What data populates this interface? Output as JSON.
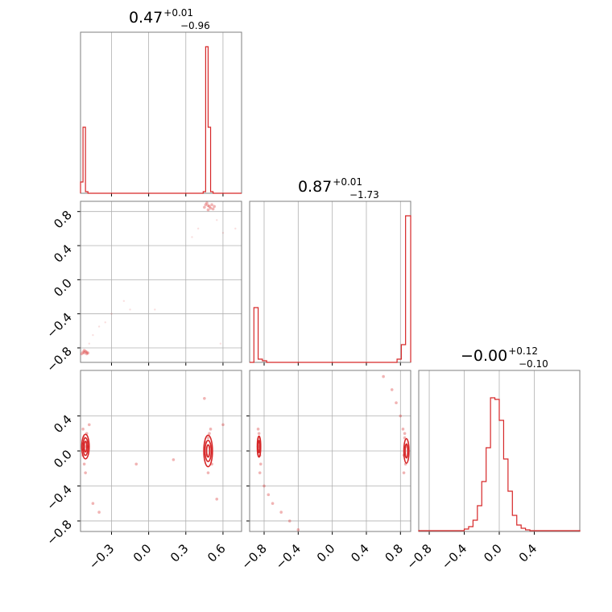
{
  "chart_data": {
    "type": "corner",
    "color": "#d62728",
    "grid": true,
    "parameters": [
      {
        "range": [
          -0.55,
          0.75
        ],
        "title": {
          "median": "0.47",
          "plus": "+0.01",
          "minus": "−0.96"
        }
      },
      {
        "range": [
          -0.97,
          0.92
        ],
        "title": {
          "median": "0.87",
          "plus": "+0.01",
          "minus": "−1.73"
        }
      },
      {
        "range": [
          -0.92,
          0.92
        ],
        "title": {
          "median": "−0.00",
          "plus": "+0.12",
          "minus": "−0.10"
        }
      }
    ],
    "ticks": {
      "p0_x": [
        {
          "v": -0.3,
          "label": "−0.3"
        },
        {
          "v": 0.0,
          "label": "0.0"
        },
        {
          "v": 0.3,
          "label": "0.3"
        },
        {
          "v": 0.6,
          "label": "0.6"
        }
      ],
      "p1_x": [
        {
          "v": -0.8,
          "label": "−0.8"
        },
        {
          "v": -0.4,
          "label": "−0.4"
        },
        {
          "v": 0.0,
          "label": "0.0"
        },
        {
          "v": 0.4,
          "label": "0.4"
        },
        {
          "v": 0.8,
          "label": "0.8"
        }
      ],
      "p2_x": [
        {
          "v": -0.8,
          "label": "−0.8"
        },
        {
          "v": -0.4,
          "label": "−0.4"
        },
        {
          "v": 0.0,
          "label": "0.0"
        },
        {
          "v": 0.4,
          "label": "0.4"
        }
      ],
      "p1_y": [
        {
          "v": -0.8,
          "label": "−0.8"
        },
        {
          "v": -0.4,
          "label": "−0.4"
        },
        {
          "v": 0.0,
          "label": "0.0"
        },
        {
          "v": 0.4,
          "label": "0.4"
        },
        {
          "v": 0.8,
          "label": "0.8"
        }
      ],
      "p2_y": [
        {
          "v": -0.8,
          "label": "−0.8"
        },
        {
          "v": -0.4,
          "label": "−0.4"
        },
        {
          "v": 0.0,
          "label": "0.0"
        },
        {
          "v": 0.4,
          "label": "0.4"
        }
      ]
    },
    "histograms": [
      {
        "param": 0,
        "edges": [
          -0.55,
          -0.53,
          -0.51,
          -0.49,
          -0.47,
          0.44,
          0.46,
          0.48,
          0.5,
          0.52,
          0.54,
          0.56,
          0.75
        ],
        "counts": [
          0.07,
          0.41,
          0.01,
          0.0,
          0.0,
          0.01,
          0.91,
          0.41,
          0.01,
          0.0,
          0.0,
          0.0
        ]
      },
      {
        "param": 1,
        "edges": [
          -0.97,
          -0.92,
          -0.87,
          -0.82,
          -0.77,
          -0.72,
          0.76,
          0.81,
          0.86,
          0.92
        ],
        "counts": [
          0.0,
          0.34,
          0.02,
          0.01,
          0.0,
          0.0,
          0.02,
          0.11,
          0.91
        ]
      },
      {
        "param": 2,
        "edges": [
          -0.92,
          -0.7,
          -0.55,
          -0.4,
          -0.35,
          -0.3,
          -0.25,
          -0.2,
          -0.15,
          -0.1,
          -0.05,
          0.0,
          0.05,
          0.1,
          0.15,
          0.2,
          0.25,
          0.3,
          0.35,
          0.5,
          0.92
        ],
        "counts": [
          0.005,
          0.005,
          0.005,
          0.015,
          0.03,
          0.07,
          0.16,
          0.31,
          0.52,
          0.83,
          0.82,
          0.69,
          0.45,
          0.25,
          0.1,
          0.04,
          0.02,
          0.01,
          0.005,
          0.005
        ]
      }
    ],
    "clusters": [
      {
        "x": 0,
        "y": 1,
        "points": [
          [
            0.48,
            0.87
          ],
          [
            0.5,
            0.84
          ],
          [
            0.46,
            0.88
          ],
          [
            0.52,
            0.83
          ],
          [
            0.47,
            0.9
          ],
          [
            0.49,
            0.86
          ],
          [
            0.51,
            0.88
          ],
          [
            0.45,
            0.85
          ],
          [
            0.53,
            0.86
          ],
          [
            0.48,
            0.82
          ],
          [
            -0.52,
            -0.86
          ],
          [
            -0.5,
            -0.87
          ],
          [
            -0.53,
            -0.85
          ],
          [
            -0.51,
            -0.84
          ],
          [
            -0.49,
            -0.86
          ],
          [
            -0.54,
            -0.87
          ],
          [
            -0.52,
            -0.83
          ],
          [
            -0.5,
            -0.85
          ]
        ]
      },
      {
        "x": 0,
        "y": 1,
        "points": [
          [
            0.4,
            0.6
          ],
          [
            0.35,
            0.5
          ],
          [
            0.55,
            0.7
          ],
          [
            0.6,
            0.55
          ],
          [
            -0.2,
            -0.25
          ],
          [
            -0.15,
            -0.35
          ],
          [
            -0.3,
            -0.4
          ],
          [
            -0.4,
            -0.55
          ],
          [
            -0.45,
            -0.65
          ],
          [
            -0.48,
            -0.75
          ],
          [
            0.05,
            -0.35
          ],
          [
            0.7,
            0.6
          ],
          [
            0.58,
            -0.75
          ],
          [
            -0.35,
            -0.5
          ]
        ]
      },
      {
        "x": 0,
        "y": 2,
        "points": [
          [
            -0.52,
            0.15
          ],
          [
            -0.51,
            0.05
          ],
          [
            -0.53,
            -0.05
          ],
          [
            -0.5,
            0.2
          ],
          [
            -0.52,
            -0.15
          ],
          [
            -0.49,
            0.1
          ],
          [
            -0.53,
            0.25
          ],
          [
            -0.51,
            -0.25
          ],
          [
            0.48,
            0.15
          ],
          [
            0.5,
            0.05
          ],
          [
            0.47,
            -0.05
          ],
          [
            0.49,
            0.2
          ],
          [
            0.51,
            -0.15
          ],
          [
            0.46,
            0.1
          ],
          [
            0.5,
            0.25
          ],
          [
            0.48,
            -0.25
          ],
          [
            -0.4,
            -0.7
          ],
          [
            -0.45,
            -0.6
          ],
          [
            0.2,
            -0.1
          ],
          [
            -0.1,
            -0.15
          ],
          [
            0.6,
            0.3
          ],
          [
            0.55,
            -0.55
          ],
          [
            -0.48,
            0.3
          ],
          [
            0.45,
            0.6
          ]
        ]
      },
      {
        "x": 1,
        "y": 2,
        "points": [
          [
            -0.86,
            0.15
          ],
          [
            -0.87,
            0.05
          ],
          [
            -0.85,
            -0.05
          ],
          [
            -0.86,
            0.2
          ],
          [
            -0.84,
            -0.15
          ],
          [
            -0.87,
            0.25
          ],
          [
            -0.85,
            -0.25
          ],
          [
            0.85,
            0.15
          ],
          [
            0.86,
            0.05
          ],
          [
            0.84,
            -0.05
          ],
          [
            0.85,
            0.2
          ],
          [
            0.86,
            -0.15
          ],
          [
            0.83,
            0.25
          ],
          [
            0.84,
            -0.25
          ],
          [
            -0.8,
            -0.4
          ],
          [
            -0.75,
            -0.5
          ],
          [
            -0.7,
            -0.6
          ],
          [
            -0.6,
            -0.7
          ],
          [
            -0.5,
            -0.8
          ],
          [
            -0.4,
            -0.9
          ],
          [
            0.8,
            0.4
          ],
          [
            0.75,
            0.55
          ],
          [
            0.7,
            0.7
          ],
          [
            0.6,
            0.85
          ]
        ]
      }
    ],
    "contours": [
      {
        "x": 0,
        "y": 2,
        "center": [
          -0.51,
          0.05
        ],
        "rx": [
          0.01,
          0.02,
          0.03
        ],
        "ry": [
          0.06,
          0.1,
          0.14
        ]
      },
      {
        "x": 0,
        "y": 2,
        "center": [
          0.48,
          0.0
        ],
        "rx": [
          0.012,
          0.025,
          0.035
        ],
        "ry": [
          0.07,
          0.12,
          0.18
        ]
      },
      {
        "x": 1,
        "y": 2,
        "center": [
          -0.86,
          0.05
        ],
        "rx": [
          0.01,
          0.02
        ],
        "ry": [
          0.07,
          0.12
        ]
      },
      {
        "x": 1,
        "y": 2,
        "center": [
          0.87,
          0.0
        ],
        "rx": [
          0.015,
          0.03
        ],
        "ry": [
          0.08,
          0.14
        ]
      }
    ]
  }
}
